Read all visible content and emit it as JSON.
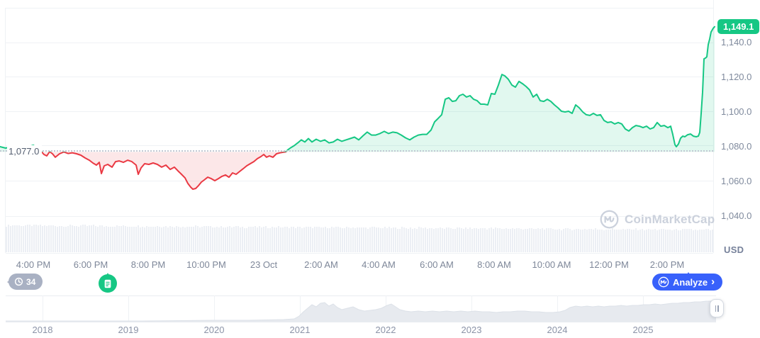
{
  "chart_data": {
    "type": "area",
    "unit": "USD",
    "baseline_label": "1,077.0",
    "current_price_label": "1,149.1",
    "baseline_value": 1077.0,
    "current_value": 1149.1,
    "y_ticks": [
      1140.0,
      1120.0,
      1100.0,
      1080.0,
      1060.0,
      1040.0
    ],
    "x_ticks": [
      "4:00 PM",
      "6:00 PM",
      "8:00 PM",
      "10:00 PM",
      "23 Oct",
      "2:00 AM",
      "4:00 AM",
      "6:00 AM",
      "8:00 AM",
      "10:00 AM",
      "12:00 PM",
      "2:00 PM"
    ],
    "legend": "price above baseline shown green, below baseline shown red",
    "series": [
      {
        "name": "price_usd",
        "color_up": "#16C784",
        "color_down": "#EA3943",
        "points": [
          [
            0,
            1080.0
          ],
          [
            8,
            1079.2
          ],
          [
            16,
            1080.0
          ],
          [
            24,
            1078.8
          ],
          [
            32,
            1078.0
          ],
          [
            40,
            1080.0
          ],
          [
            47,
            1080.8
          ],
          [
            53,
            1079.2
          ],
          [
            58,
            1077.4
          ],
          [
            62,
            1075.5
          ],
          [
            66,
            1074.7
          ],
          [
            70,
            1077.1
          ],
          [
            74,
            1075.9
          ],
          [
            78,
            1073.9
          ],
          [
            84,
            1075.9
          ],
          [
            90,
            1077.0
          ],
          [
            96,
            1076.1
          ],
          [
            102,
            1076.5
          ],
          [
            108,
            1075.9
          ],
          [
            114,
            1075.1
          ],
          [
            120,
            1073.5
          ],
          [
            126,
            1072.2
          ],
          [
            131,
            1070.6
          ],
          [
            136,
            1069.4
          ],
          [
            140,
            1071.0
          ],
          [
            143,
            1064.5
          ],
          [
            147,
            1069.0
          ],
          [
            152,
            1069.8
          ],
          [
            158,
            1068.2
          ],
          [
            163,
            1071.4
          ],
          [
            168,
            1071.8
          ],
          [
            174,
            1071.0
          ],
          [
            180,
            1072.2
          ],
          [
            186,
            1071.4
          ],
          [
            192,
            1069.4
          ],
          [
            195,
            1064.1
          ],
          [
            199,
            1067.8
          ],
          [
            204,
            1070.2
          ],
          [
            210,
            1069.8
          ],
          [
            216,
            1070.6
          ],
          [
            222,
            1069.8
          ],
          [
            228,
            1068.2
          ],
          [
            234,
            1069.4
          ],
          [
            240,
            1066.9
          ],
          [
            246,
            1068.2
          ],
          [
            251,
            1066.1
          ],
          [
            256,
            1064.1
          ],
          [
            261,
            1062.0
          ],
          [
            265,
            1058.8
          ],
          [
            269,
            1056.7
          ],
          [
            272,
            1055.5
          ],
          [
            276,
            1055.9
          ],
          [
            280,
            1057.6
          ],
          [
            284,
            1059.6
          ],
          [
            288,
            1060.8
          ],
          [
            293,
            1062.4
          ],
          [
            298,
            1061.6
          ],
          [
            303,
            1060.4
          ],
          [
            308,
            1061.6
          ],
          [
            313,
            1062.9
          ],
          [
            318,
            1063.7
          ],
          [
            323,
            1062.4
          ],
          [
            328,
            1064.9
          ],
          [
            333,
            1064.1
          ],
          [
            338,
            1065.7
          ],
          [
            343,
            1067.3
          ],
          [
            348,
            1069.0
          ],
          [
            353,
            1070.2
          ],
          [
            358,
            1071.4
          ],
          [
            363,
            1073.1
          ],
          [
            368,
            1074.3
          ],
          [
            372,
            1075.5
          ],
          [
            376,
            1073.9
          ],
          [
            380,
            1074.7
          ],
          [
            385,
            1073.9
          ],
          [
            390,
            1075.9
          ],
          [
            395,
            1076.5
          ],
          [
            400,
            1076.8
          ],
          [
            403,
            1077.0
          ],
          [
            406,
            1078.2
          ],
          [
            410,
            1079.4
          ],
          [
            415,
            1080.6
          ],
          [
            420,
            1082.2
          ],
          [
            425,
            1083.9
          ],
          [
            430,
            1082.7
          ],
          [
            435,
            1084.7
          ],
          [
            440,
            1082.7
          ],
          [
            446,
            1084.3
          ],
          [
            452,
            1083.1
          ],
          [
            458,
            1083.9
          ],
          [
            464,
            1082.2
          ],
          [
            470,
            1082.7
          ],
          [
            476,
            1084.3
          ],
          [
            482,
            1083.1
          ],
          [
            488,
            1083.9
          ],
          [
            494,
            1084.7
          ],
          [
            500,
            1085.5
          ],
          [
            506,
            1083.9
          ],
          [
            512,
            1086.3
          ],
          [
            518,
            1088.4
          ],
          [
            524,
            1086.7
          ],
          [
            530,
            1086.7
          ],
          [
            536,
            1087.6
          ],
          [
            542,
            1088.8
          ],
          [
            548,
            1087.6
          ],
          [
            554,
            1088.4
          ],
          [
            560,
            1088.0
          ],
          [
            566,
            1086.7
          ],
          [
            572,
            1085.1
          ],
          [
            578,
            1083.9
          ],
          [
            584,
            1085.5
          ],
          [
            590,
            1086.7
          ],
          [
            596,
            1087.1
          ],
          [
            602,
            1087.1
          ],
          [
            608,
            1089.6
          ],
          [
            613,
            1094.3
          ],
          [
            618,
            1096.3
          ],
          [
            623,
            1098.4
          ],
          [
            628,
            1107.3
          ],
          [
            633,
            1108.2
          ],
          [
            638,
            1106.1
          ],
          [
            643,
            1106.5
          ],
          [
            648,
            1109.4
          ],
          [
            653,
            1110.2
          ],
          [
            658,
            1108.6
          ],
          [
            663,
            1109.4
          ],
          [
            668,
            1107.3
          ],
          [
            673,
            1106.5
          ],
          [
            678,
            1104.5
          ],
          [
            683,
            1104.5
          ],
          [
            688,
            1104.1
          ],
          [
            693,
            1110.6
          ],
          [
            698,
            1110.2
          ],
          [
            703,
            1115.5
          ],
          [
            708,
            1121.6
          ],
          [
            712,
            1120.8
          ],
          [
            717,
            1118.8
          ],
          [
            722,
            1115.5
          ],
          [
            727,
            1114.3
          ],
          [
            732,
            1117.6
          ],
          [
            737,
            1116.3
          ],
          [
            742,
            1114.7
          ],
          [
            747,
            1112.7
          ],
          [
            752,
            1108.6
          ],
          [
            757,
            1110.2
          ],
          [
            762,
            1106.5
          ],
          [
            767,
            1106.1
          ],
          [
            772,
            1107.3
          ],
          [
            777,
            1106.1
          ],
          [
            782,
            1104.1
          ],
          [
            787,
            1102.4
          ],
          [
            792,
            1100.4
          ],
          [
            797,
            1100.0
          ],
          [
            802,
            1100.4
          ],
          [
            807,
            1099.2
          ],
          [
            812,
            1104.1
          ],
          [
            817,
            1102.4
          ],
          [
            822,
            1100.0
          ],
          [
            827,
            1098.4
          ],
          [
            832,
            1098.0
          ],
          [
            837,
            1099.2
          ],
          [
            842,
            1098.0
          ],
          [
            847,
            1098.4
          ],
          [
            852,
            1095.1
          ],
          [
            857,
            1093.9
          ],
          [
            862,
            1094.3
          ],
          [
            867,
            1093.1
          ],
          [
            872,
            1093.9
          ],
          [
            877,
            1093.1
          ],
          [
            882,
            1090.2
          ],
          [
            887,
            1089.0
          ],
          [
            892,
            1091.0
          ],
          [
            897,
            1092.2
          ],
          [
            902,
            1091.8
          ],
          [
            907,
            1091.0
          ],
          [
            912,
            1091.8
          ],
          [
            917,
            1090.2
          ],
          [
            922,
            1091.0
          ],
          [
            927,
            1093.9
          ],
          [
            932,
            1091.8
          ],
          [
            937,
            1092.2
          ],
          [
            942,
            1091.0
          ],
          [
            946,
            1091.8
          ],
          [
            949,
            1087.0
          ],
          [
            952,
            1081.2
          ],
          [
            954,
            1080.0
          ],
          [
            957,
            1081.6
          ],
          [
            960,
            1084.9
          ],
          [
            963,
            1086.1
          ],
          [
            966,
            1085.7
          ],
          [
            970,
            1086.9
          ],
          [
            974,
            1087.3
          ],
          [
            978,
            1086.1
          ],
          [
            982,
            1085.7
          ],
          [
            985,
            1086.1
          ],
          [
            987,
            1088.2
          ],
          [
            989,
            1099.2
          ],
          [
            991,
            1111.4
          ],
          [
            993,
            1130.6
          ],
          [
            995,
            1131.0
          ],
          [
            997,
            1131.8
          ],
          [
            999,
            1138.8
          ],
          [
            1001,
            1142.0
          ],
          [
            1003,
            1146.1
          ],
          [
            1006,
            1148.2
          ],
          [
            1008,
            1149.1
          ]
        ]
      }
    ],
    "volume": {
      "bar_count": 333,
      "note": "decorative volume strip along bottom of plot"
    },
    "brush": {
      "years": [
        "2018",
        "2019",
        "2020",
        "2021",
        "2022",
        "2023",
        "2024",
        "2025"
      ],
      "silhouette_points": [
        [
          8,
          1
        ],
        [
          100,
          1
        ],
        [
          200,
          1
        ],
        [
          300,
          2
        ],
        [
          350,
          2
        ],
        [
          400,
          3
        ],
        [
          415,
          4
        ],
        [
          422,
          8
        ],
        [
          428,
          14
        ],
        [
          434,
          19
        ],
        [
          440,
          24
        ],
        [
          446,
          21
        ],
        [
          452,
          26
        ],
        [
          458,
          27
        ],
        [
          464,
          22
        ],
        [
          470,
          25
        ],
        [
          476,
          20
        ],
        [
          482,
          17
        ],
        [
          490,
          19
        ],
        [
          498,
          21
        ],
        [
          506,
          17
        ],
        [
          514,
          15
        ],
        [
          522,
          16
        ],
        [
          530,
          17
        ],
        [
          538,
          19
        ],
        [
          546,
          23
        ],
        [
          552,
          25
        ],
        [
          558,
          21
        ],
        [
          564,
          17
        ],
        [
          572,
          15
        ],
        [
          580,
          14
        ],
        [
          590,
          15
        ],
        [
          600,
          14
        ],
        [
          610,
          15
        ],
        [
          620,
          14
        ],
        [
          630,
          15
        ],
        [
          640,
          14
        ],
        [
          650,
          15
        ],
        [
          660,
          14
        ],
        [
          670,
          15
        ],
        [
          680,
          14
        ],
        [
          690,
          14
        ],
        [
          700,
          13
        ],
        [
          710,
          14
        ],
        [
          720,
          14
        ],
        [
          730,
          15
        ],
        [
          740,
          15
        ],
        [
          750,
          14
        ],
        [
          760,
          14
        ],
        [
          770,
          13
        ],
        [
          780,
          13
        ],
        [
          790,
          14
        ],
        [
          797,
          16
        ],
        [
          804,
          20
        ],
        [
          812,
          22
        ],
        [
          820,
          21
        ],
        [
          828,
          22
        ],
        [
          836,
          21
        ],
        [
          844,
          22
        ],
        [
          852,
          21
        ],
        [
          860,
          22
        ],
        [
          868,
          22
        ],
        [
          876,
          23
        ],
        [
          884,
          22
        ],
        [
          892,
          23
        ],
        [
          900,
          23
        ],
        [
          908,
          24
        ],
        [
          916,
          24
        ],
        [
          924,
          25
        ],
        [
          932,
          24
        ],
        [
          940,
          25
        ],
        [
          948,
          26
        ],
        [
          956,
          26
        ],
        [
          964,
          27
        ],
        [
          972,
          27
        ],
        [
          980,
          28
        ],
        [
          988,
          28
        ],
        [
          996,
          29
        ],
        [
          1002,
          29
        ],
        [
          1010,
          30
        ]
      ]
    }
  },
  "ui": {
    "watermark": "CoinMarketCap",
    "history_badge_count": "34",
    "analyze_button": {
      "label": "Analyze",
      "chevron": "›"
    }
  },
  "colors": {
    "up": "#16C784",
    "down": "#EA3943",
    "accent_blue": "#3861FB",
    "badge_gray": "#A9B1C3",
    "axis_text": "#7F8A9D"
  }
}
